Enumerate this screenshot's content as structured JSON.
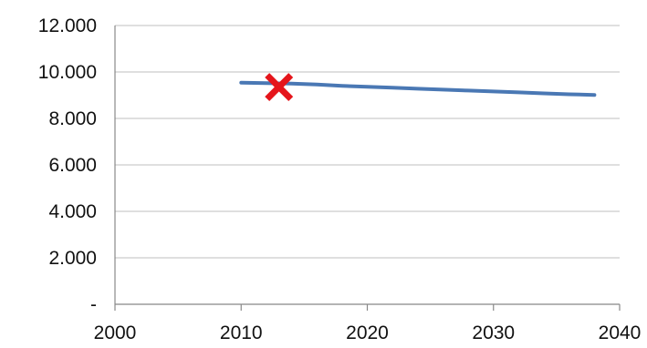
{
  "chart_data": {
    "type": "line",
    "title": "",
    "xlabel": "",
    "ylabel": "",
    "xlim": [
      2000,
      2040
    ],
    "ylim": [
      0,
      12000
    ],
    "grid": true,
    "x_ticks": [
      {
        "value": 2000,
        "label": "2000"
      },
      {
        "value": 2010,
        "label": "2010"
      },
      {
        "value": 2020,
        "label": "2020"
      },
      {
        "value": 2030,
        "label": "2030"
      },
      {
        "value": 2040,
        "label": "2040"
      }
    ],
    "y_ticks": [
      {
        "value": 0,
        "label": "-"
      },
      {
        "value": 2000,
        "label": "2.000"
      },
      {
        "value": 4000,
        "label": "4.000"
      },
      {
        "value": 6000,
        "label": "6.000"
      },
      {
        "value": 8000,
        "label": "8.000"
      },
      {
        "value": 10000,
        "label": "10.000"
      },
      {
        "value": 12000,
        "label": "12.000"
      }
    ],
    "series": [
      {
        "type": "line",
        "color": "#4a78b4",
        "points": [
          {
            "x": 2010,
            "y": 9540
          },
          {
            "x": 2014,
            "y": 9500
          },
          {
            "x": 2016,
            "y": 9460
          },
          {
            "x": 2018,
            "y": 9400
          },
          {
            "x": 2020,
            "y": 9360
          },
          {
            "x": 2022,
            "y": 9320
          },
          {
            "x": 2024,
            "y": 9280
          },
          {
            "x": 2026,
            "y": 9240
          },
          {
            "x": 2028,
            "y": 9200
          },
          {
            "x": 2030,
            "y": 9160
          },
          {
            "x": 2032,
            "y": 9120
          },
          {
            "x": 2034,
            "y": 9080
          },
          {
            "x": 2036,
            "y": 9040
          },
          {
            "x": 2038,
            "y": 9010
          }
        ]
      },
      {
        "type": "marker",
        "marker": "x",
        "color": "#e5151b",
        "points": [
          {
            "x": 2013,
            "y": 9350
          }
        ]
      }
    ]
  }
}
